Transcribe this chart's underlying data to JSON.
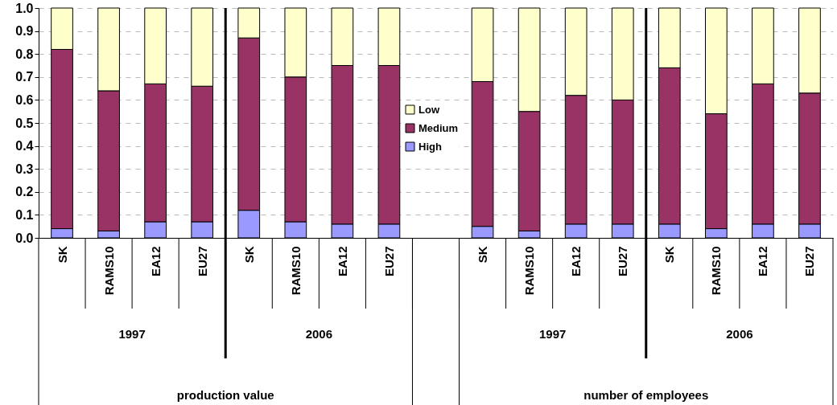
{
  "chart_data": {
    "type": "bar",
    "stacked": true,
    "categories": [
      "SK",
      "RAMS10",
      "EA12",
      "EU27",
      "SK",
      "RAMS10",
      "EA12",
      "EU27",
      null,
      "SK",
      "RAMS10",
      "EA12",
      "EU27",
      "SK",
      "RAMS10",
      "EA12",
      "EU27"
    ],
    "series": [
      {
        "name": "High",
        "color": "#9999ff",
        "values": [
          0.04,
          0.03,
          0.07,
          0.07,
          0.12,
          0.07,
          0.06,
          0.06,
          null,
          0.05,
          0.03,
          0.06,
          0.06,
          0.06,
          0.04,
          0.06,
          0.06
        ]
      },
      {
        "name": "Medium",
        "color": "#993366",
        "values": [
          0.78,
          0.61,
          0.6,
          0.59,
          0.75,
          0.63,
          0.69,
          0.69,
          null,
          0.63,
          0.52,
          0.56,
          0.54,
          0.68,
          0.5,
          0.61,
          0.57
        ]
      },
      {
        "name": "Low",
        "color": "#ffffcc",
        "values": [
          0.18,
          0.36,
          0.33,
          0.34,
          0.13,
          0.3,
          0.25,
          0.25,
          null,
          0.32,
          0.45,
          0.38,
          0.4,
          0.26,
          0.46,
          0.33,
          0.37
        ]
      }
    ],
    "ylim": [
      0,
      1
    ],
    "yticks": [
      {
        "value": 0,
        "label": "0.0"
      },
      0.1,
      0.2,
      0.3,
      0.4,
      0.5,
      0.6,
      0.7,
      0.8,
      0.9,
      {
        "value": 1,
        "label": "1.0"
      }
    ],
    "grid": "y",
    "legend": "center",
    "annotations": [
      "1997",
      "2006",
      "1997",
      "2006",
      "production value",
      "number of employees"
    ]
  }
}
